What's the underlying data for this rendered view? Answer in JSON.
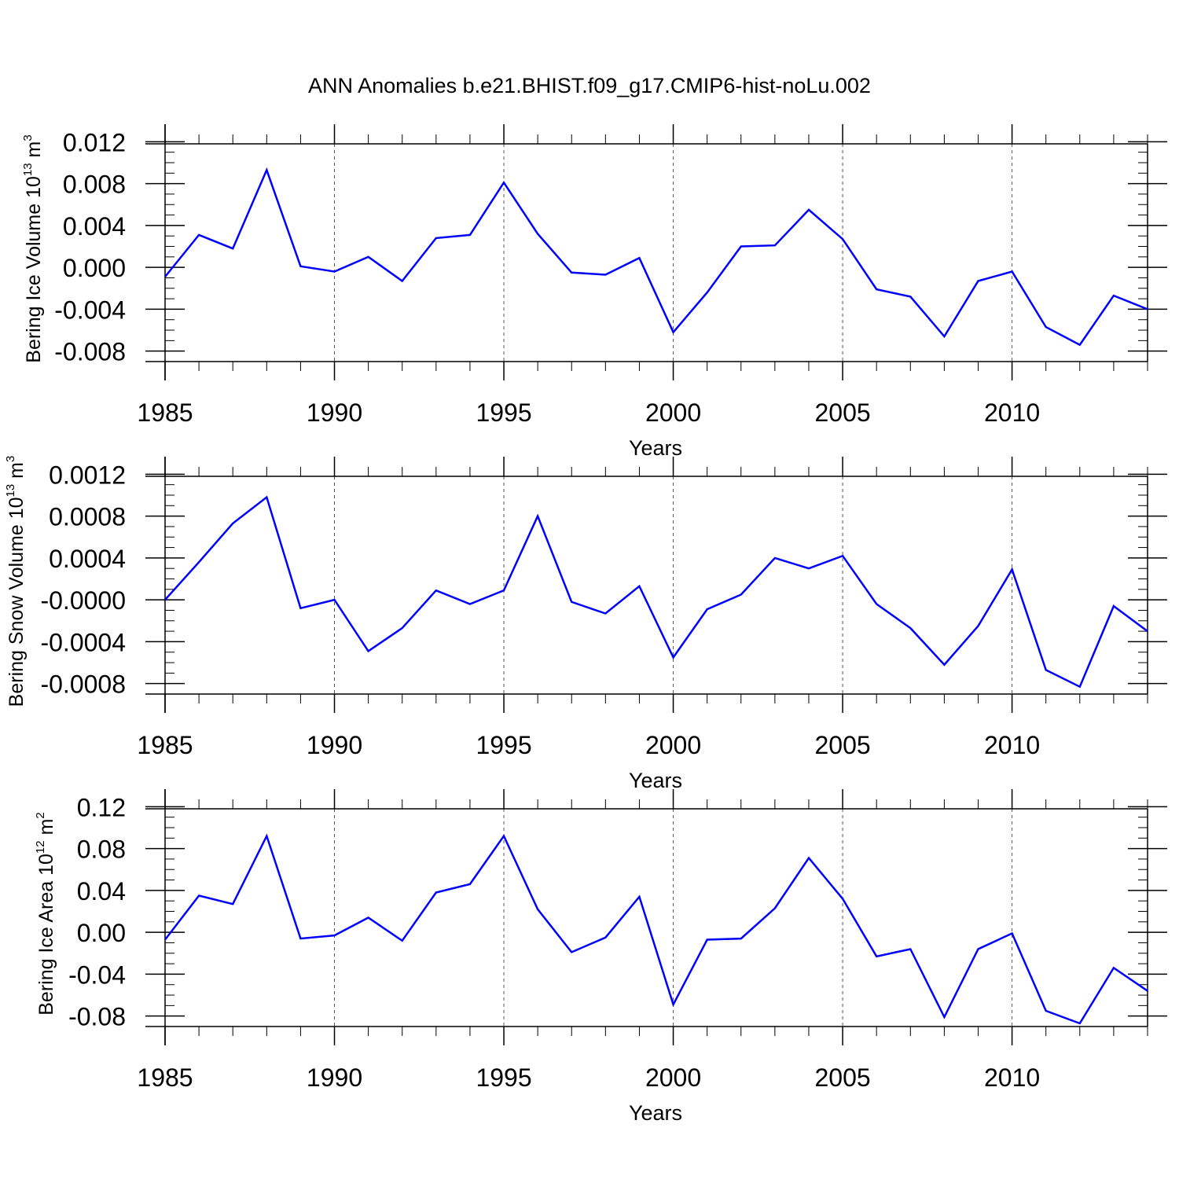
{
  "title": "ANN Anomalies b.e21.BHIST.f09_g17.CMIP6-hist-noLu.002",
  "colors": {
    "line": "#0000ff",
    "axis": "#000000",
    "grid": "#555555"
  },
  "chart_data": [
    {
      "type": "line",
      "ylabel_main": "Bering Ice Volume 10",
      "ylabel_exp": "13",
      "ylabel_unit": " m",
      "ylabel_unit_exp": "3",
      "xlabel": "Years",
      "xlim": [
        1985,
        2014
      ],
      "ylim": [
        -0.009,
        0.0118
      ],
      "yticks": [
        -0.008,
        -0.004,
        0.0,
        0.004,
        0.008,
        0.012
      ],
      "ytick_labels": [
        "-0.008",
        "-0.004",
        "0.000",
        "0.004",
        "0.008",
        "0.012"
      ],
      "xticks": [
        1985,
        1990,
        1995,
        2000,
        2005,
        2010
      ],
      "xtick_labels": [
        "1985",
        "1990",
        "1995",
        "2000",
        "2005",
        "2010"
      ],
      "gridlines_x": [
        1990,
        1995,
        2000,
        2005,
        2010
      ],
      "x": [
        1985,
        1986,
        1987,
        1988,
        1989,
        1990,
        1991,
        1992,
        1993,
        1994,
        1995,
        1996,
        1997,
        1998,
        1999,
        2000,
        2001,
        2002,
        2003,
        2004,
        2005,
        2006,
        2007,
        2008,
        2009,
        2010,
        2011,
        2012,
        2013,
        2014
      ],
      "series": [
        {
          "values": [
            -0.0009,
            0.0031,
            0.0018,
            0.0093,
            0.0001,
            -0.0004,
            0.001,
            -0.0013,
            0.0028,
            0.0031,
            0.0081,
            0.0032,
            -0.0005,
            -0.0007,
            0.0009,
            -0.0062,
            -0.0024,
            0.002,
            0.0021,
            0.0055,
            0.0027,
            -0.0021,
            -0.0028,
            -0.0066,
            -0.0013,
            -0.0004,
            -0.0057,
            -0.0074,
            -0.0027,
            -0.004
          ]
        }
      ]
    },
    {
      "type": "line",
      "ylabel_main": "Bering Snow Volume 10",
      "ylabel_exp": "13",
      "ylabel_unit": " m",
      "ylabel_unit_exp": "3",
      "xlabel": "Years",
      "xlim": [
        1985,
        2014
      ],
      "ylim": [
        -0.0009,
        0.00118
      ],
      "yticks": [
        -0.0008,
        -0.0004,
        0.0,
        0.0004,
        0.0008,
        0.0012
      ],
      "ytick_labels": [
        "-0.0008",
        "-0.0004",
        "-0.0000",
        "0.0004",
        "0.0008",
        "0.0012"
      ],
      "xticks": [
        1985,
        1990,
        1995,
        2000,
        2005,
        2010
      ],
      "xtick_labels": [
        "1985",
        "1990",
        "1995",
        "2000",
        "2005",
        "2010"
      ],
      "gridlines_x": [
        1990,
        1995,
        2000,
        2005,
        2010
      ],
      "x": [
        1985,
        1986,
        1987,
        1988,
        1989,
        1990,
        1991,
        1992,
        1993,
        1994,
        1995,
        1996,
        1997,
        1998,
        1999,
        2000,
        2001,
        2002,
        2003,
        2004,
        2005,
        2006,
        2007,
        2008,
        2009,
        2010,
        2011,
        2012,
        2013,
        2014
      ],
      "series": [
        {
          "values": [
            0.0,
            0.00036,
            0.00073,
            0.00098,
            -8e-05,
            0.0,
            -0.00049,
            -0.00027,
            9e-05,
            -4e-05,
            9e-05,
            0.0008,
            -2e-05,
            -0.00013,
            0.00013,
            -0.00055,
            -9e-05,
            5e-05,
            0.0004,
            0.0003,
            0.00042,
            -4e-05,
            -0.00027,
            -0.00062,
            -0.00025,
            0.00029,
            -0.00067,
            -0.00083,
            -6e-05,
            -0.0003
          ]
        }
      ]
    },
    {
      "type": "line",
      "ylabel_main": "Bering Ice Area 10",
      "ylabel_exp": "12",
      "ylabel_unit": " m",
      "ylabel_unit_exp": "2",
      "xlabel": "Years",
      "xlim": [
        1985,
        2014
      ],
      "ylim": [
        -0.09,
        0.118
      ],
      "yticks": [
        -0.08,
        -0.04,
        0.0,
        0.04,
        0.08,
        0.12
      ],
      "ytick_labels": [
        "-0.08",
        "-0.04",
        "0.00",
        "0.04",
        "0.08",
        "0.12"
      ],
      "xticks": [
        1985,
        1990,
        1995,
        2000,
        2005,
        2010
      ],
      "xtick_labels": [
        "1985",
        "1990",
        "1995",
        "2000",
        "2005",
        "2010"
      ],
      "gridlines_x": [
        1990,
        1995,
        2000,
        2005,
        2010
      ],
      "x": [
        1985,
        1986,
        1987,
        1988,
        1989,
        1990,
        1991,
        1992,
        1993,
        1994,
        1995,
        1996,
        1997,
        1998,
        1999,
        2000,
        2001,
        2002,
        2003,
        2004,
        2005,
        2006,
        2007,
        2008,
        2009,
        2010,
        2011,
        2012,
        2013,
        2014
      ],
      "series": [
        {
          "values": [
            -0.007,
            0.035,
            0.027,
            0.092,
            -0.006,
            -0.003,
            0.014,
            -0.008,
            0.038,
            0.046,
            0.092,
            0.022,
            -0.019,
            -0.005,
            0.034,
            -0.069,
            -0.007,
            -0.006,
            0.023,
            0.071,
            0.032,
            -0.023,
            -0.016,
            -0.081,
            -0.016,
            -0.001,
            -0.075,
            -0.087,
            -0.034,
            -0.056
          ]
        }
      ]
    }
  ]
}
